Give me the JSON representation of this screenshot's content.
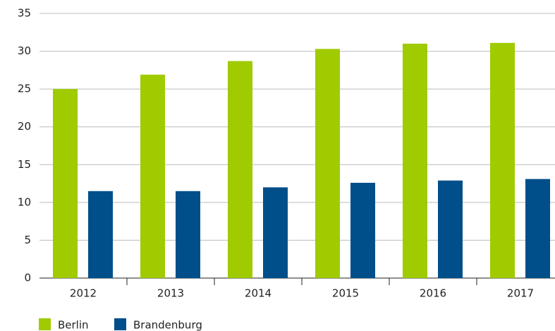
{
  "chart_data": {
    "type": "bar",
    "categories": [
      "2012",
      "2013",
      "2014",
      "2015",
      "2016",
      "2017"
    ],
    "series": [
      {
        "name": "Berlin",
        "color": "#9fcb00",
        "values": [
          25.0,
          26.9,
          28.7,
          30.3,
          31.0,
          31.1
        ]
      },
      {
        "name": "Brandenburg",
        "color": "#004f8a",
        "values": [
          11.5,
          11.5,
          12.0,
          12.6,
          12.9,
          13.1
        ]
      }
    ],
    "ylim": [
      0,
      35
    ],
    "yticks": [
      0,
      5,
      10,
      15,
      20,
      25,
      30,
      35
    ],
    "grid": true,
    "legend": "bottom-left"
  }
}
